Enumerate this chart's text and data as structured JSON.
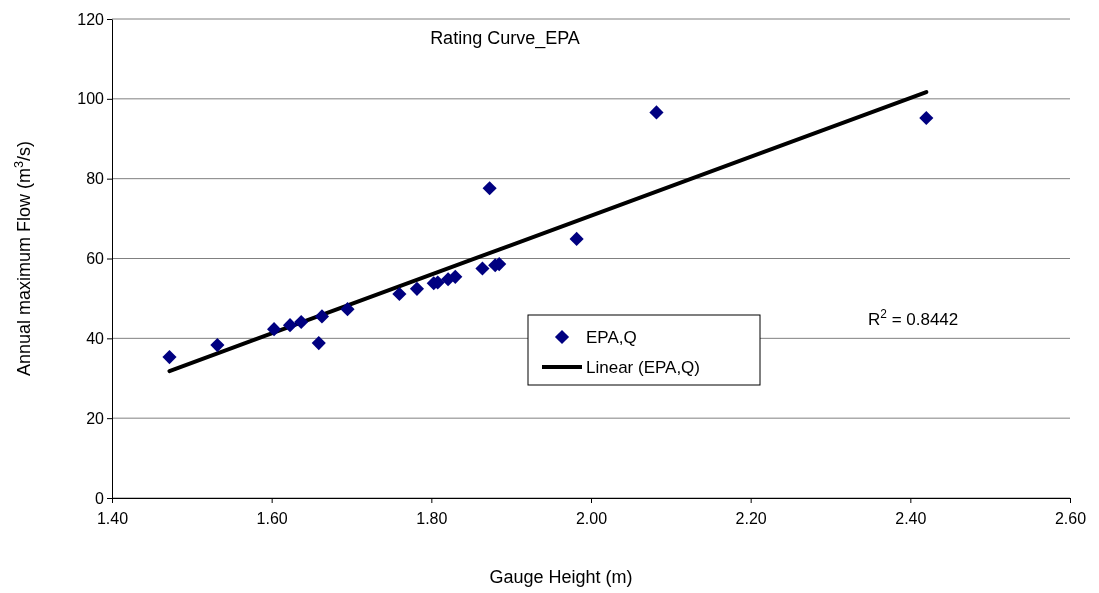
{
  "chart_data": {
    "type": "scatter",
    "title": "Rating Curve_EPA",
    "xlabel": "Gauge Height (m)",
    "ylabel": "Annual maximum Flow (m$^{3}$/s)",
    "xlim": [
      1.4,
      2.6
    ],
    "xticks": [
      {
        "value": 1.4,
        "label": "1.40"
      },
      {
        "value": 1.6,
        "label": "1.60"
      },
      {
        "value": 1.8,
        "label": "1.80"
      },
      {
        "value": 2.0,
        "label": "2.00"
      },
      {
        "value": 2.2,
        "label": "2.20"
      },
      {
        "value": 2.4,
        "label": "2.40"
      },
      {
        "value": 2.6,
        "label": "2.60"
      }
    ],
    "ylim": [
      0,
      120
    ],
    "yticks": [
      0,
      20,
      40,
      60,
      80,
      100,
      120
    ],
    "grid": "y",
    "legend": "center",
    "annotations": [
      "R$^{2}$ = 0.8442"
    ],
    "series": [
      {
        "name": "EPA,Q",
        "marker": "diamond",
        "color": "#000080",
        "x": [
          1.472,
          1.532,
          1.603,
          1.623,
          1.637,
          1.659,
          1.663,
          1.695,
          1.76,
          1.782,
          1.803,
          1.808,
          1.821,
          1.83,
          1.864,
          1.873,
          1.88,
          1.885,
          1.982,
          2.082,
          2.42
        ],
        "values": [
          35.3,
          38.3,
          42.3,
          43.3,
          44.1,
          38.8,
          45.5,
          47.3,
          51.1,
          52.4,
          53.8,
          54.0,
          54.8,
          55.4,
          57.5,
          77.6,
          58.3,
          58.6,
          64.9,
          96.6,
          95.2
        ]
      },
      {
        "name": "Linear (EPA,Q)",
        "type": "line",
        "color": "#000000",
        "x": [
          1.472,
          2.42
        ],
        "values": [
          31.8,
          101.7
        ]
      }
    ]
  }
}
